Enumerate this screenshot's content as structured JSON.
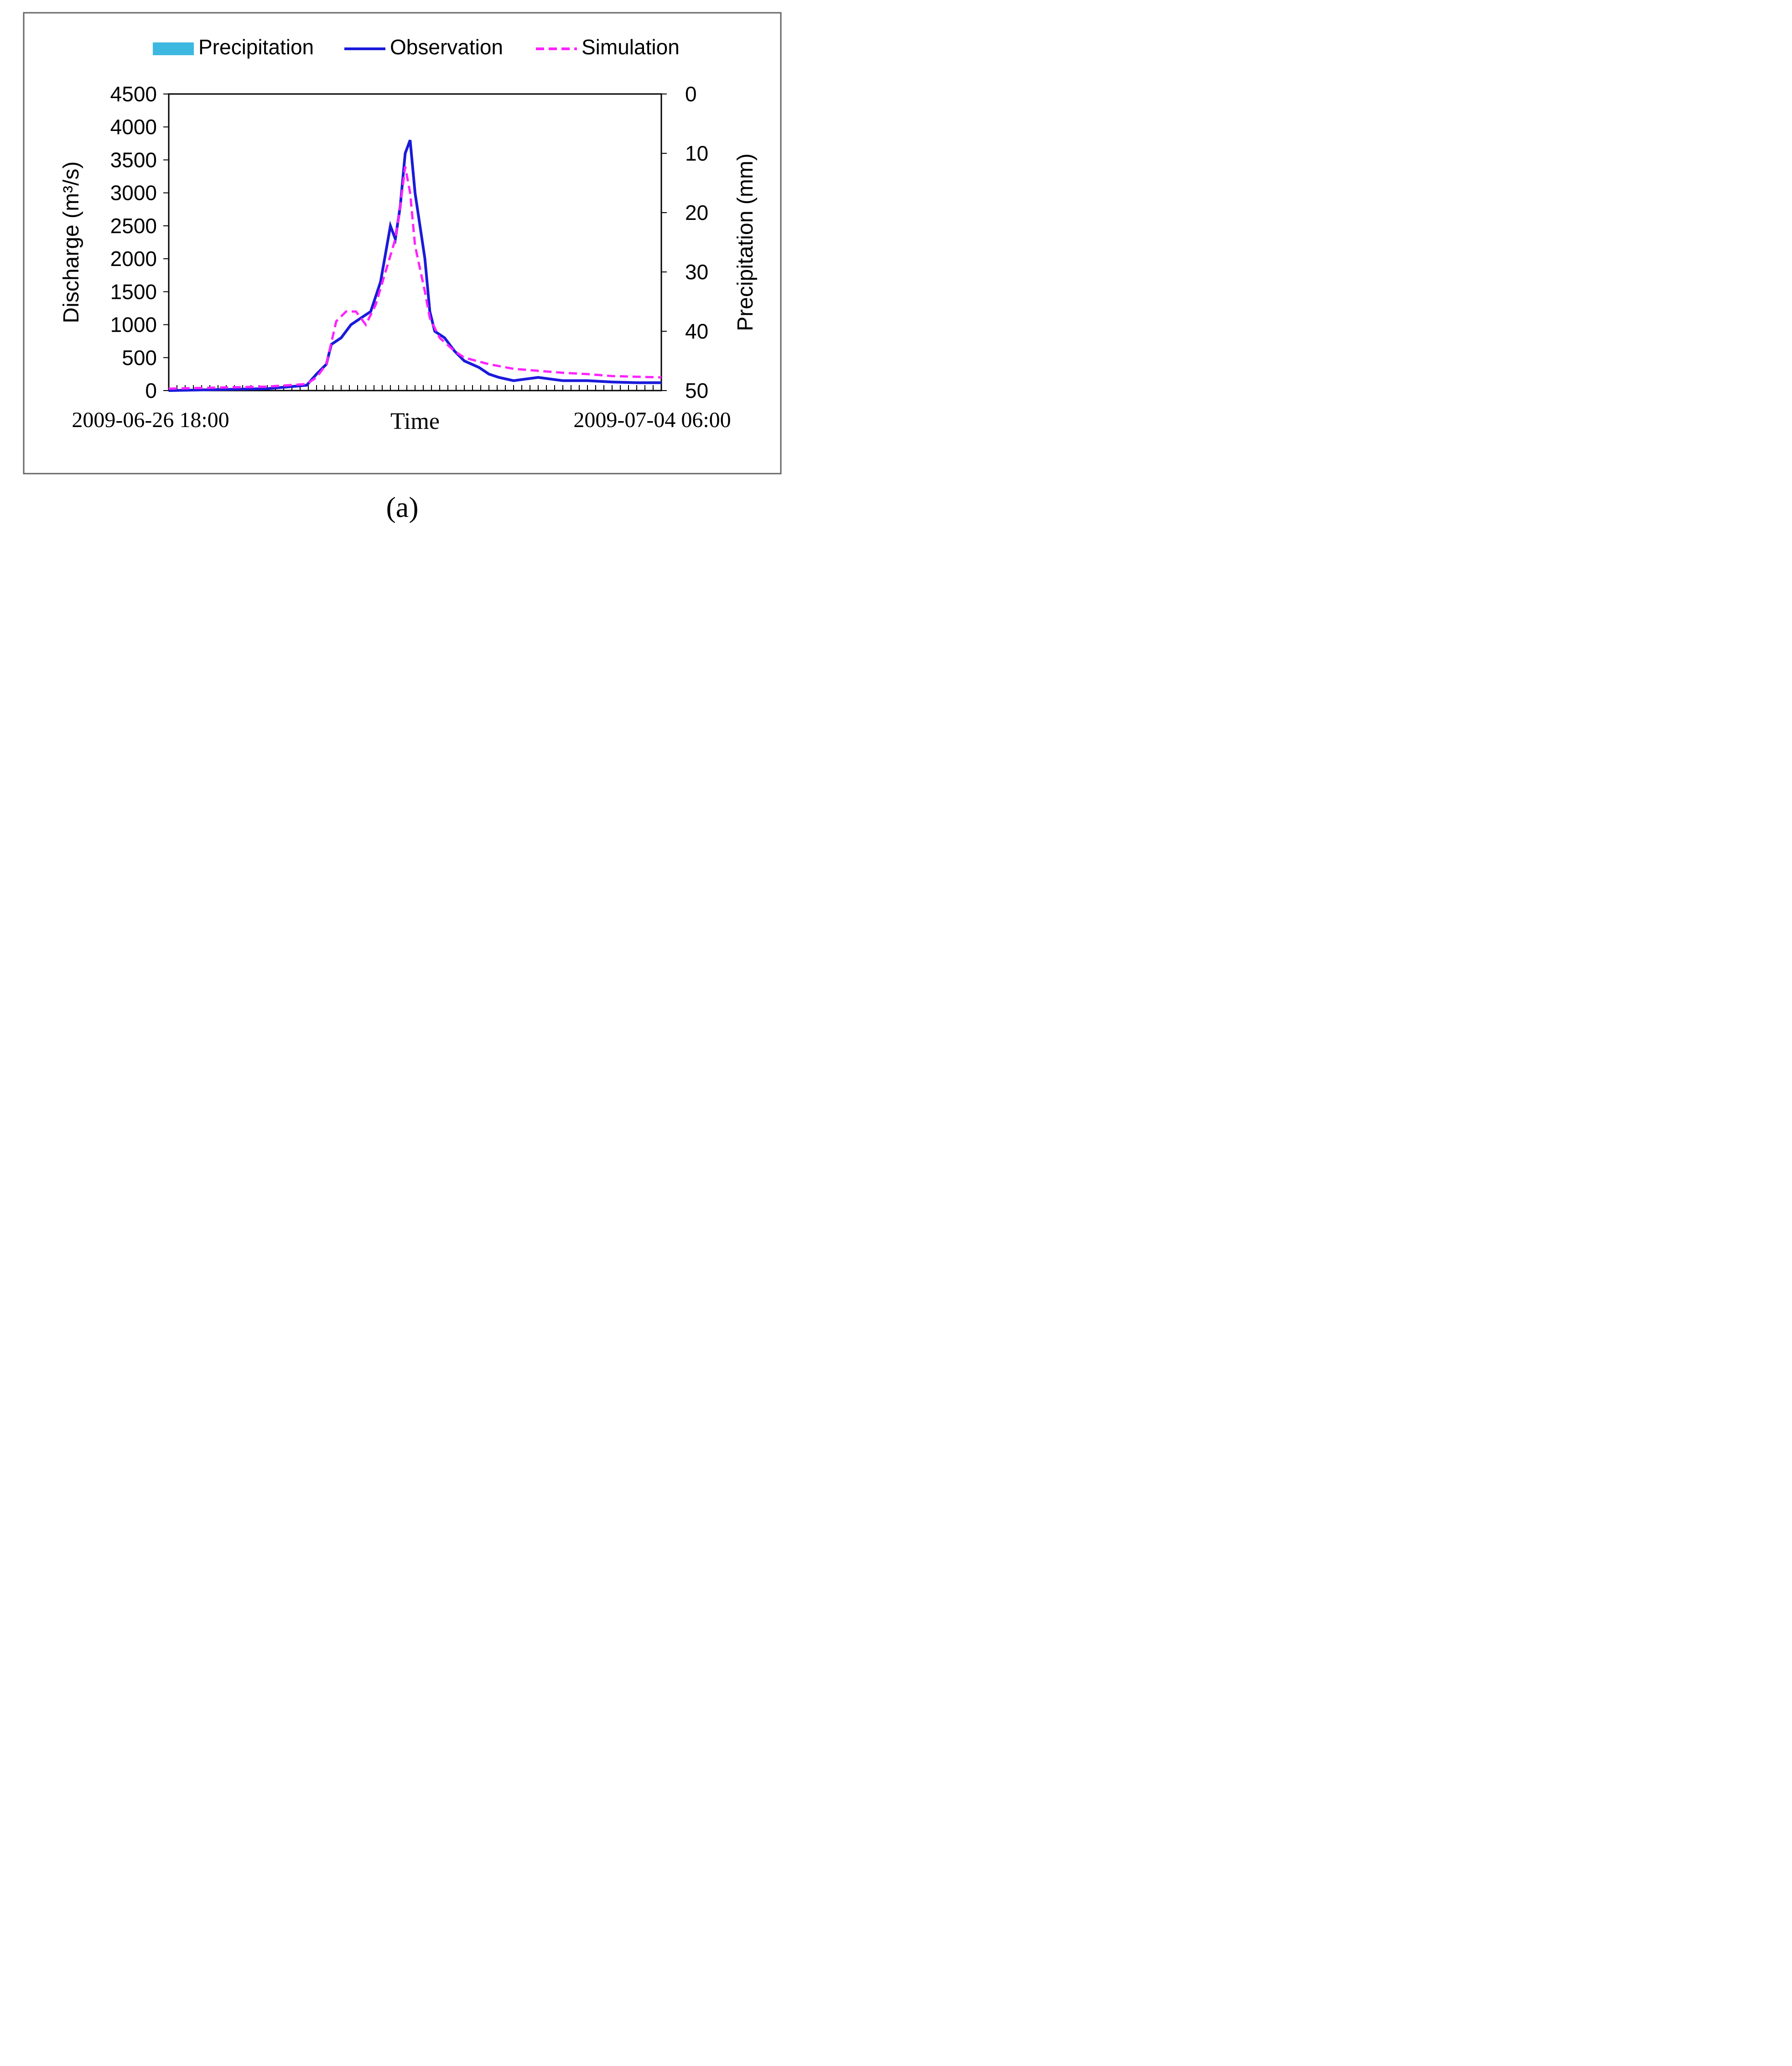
{
  "figure": {
    "time_axis_label": "Time",
    "left_axis_label": "Discharge (m³/s)",
    "right_axis_label": "Precipitation (mm)",
    "legend": {
      "precipitation": "Precipitation",
      "observation": "Observation",
      "simulation": "Simulation"
    },
    "colors": {
      "precipitation": "#3db8e0",
      "observation": "#1a1adb",
      "simulation": "#ff22ff",
      "frame": "#666666",
      "text": "#000000"
    }
  },
  "chart_data": [
    {
      "type": "line",
      "caption": "(a)",
      "start_label": "2009-06-26 18:00",
      "end_label": "2009-07-04 06:00",
      "xlabel": "Time",
      "ylabel": "Discharge (m³/s)",
      "y2label": "Precipitation (mm)",
      "ylim": [
        0,
        4500
      ],
      "yticks": [
        0,
        500,
        1000,
        1500,
        2000,
        2500,
        3000,
        3500,
        4000,
        4500
      ],
      "y2lim": [
        0,
        50
      ],
      "y2ticks": [
        0,
        10,
        20,
        30,
        40,
        50
      ],
      "y2_inverted": true,
      "series": [
        {
          "name": "Observation",
          "points": [
            [
              0,
              0
            ],
            [
              0.2,
              30
            ],
            [
              0.28,
              80
            ],
            [
              0.3,
              250
            ],
            [
              0.32,
              400
            ],
            [
              0.33,
              700
            ],
            [
              0.35,
              800
            ],
            [
              0.37,
              1000
            ],
            [
              0.39,
              1100
            ],
            [
              0.41,
              1200
            ],
            [
              0.43,
              1650
            ],
            [
              0.45,
              2500
            ],
            [
              0.46,
              2300
            ],
            [
              0.47,
              2800
            ],
            [
              0.48,
              3600
            ],
            [
              0.49,
              3800
            ],
            [
              0.5,
              3000
            ],
            [
              0.52,
              2000
            ],
            [
              0.53,
              1200
            ],
            [
              0.54,
              900
            ],
            [
              0.56,
              800
            ],
            [
              0.58,
              600
            ],
            [
              0.6,
              450
            ],
            [
              0.63,
              350
            ],
            [
              0.65,
              250
            ],
            [
              0.67,
              200
            ],
            [
              0.7,
              150
            ],
            [
              0.75,
              200
            ],
            [
              0.8,
              150
            ],
            [
              0.85,
              150
            ],
            [
              0.9,
              130
            ],
            [
              0.95,
              120
            ],
            [
              1,
              120
            ]
          ]
        },
        {
          "name": "Simulation",
          "points": [
            [
              0,
              30
            ],
            [
              0.2,
              60
            ],
            [
              0.28,
              100
            ],
            [
              0.3,
              200
            ],
            [
              0.32,
              400
            ],
            [
              0.34,
              1050
            ],
            [
              0.36,
              1200
            ],
            [
              0.38,
              1200
            ],
            [
              0.4,
              1000
            ],
            [
              0.42,
              1300
            ],
            [
              0.44,
              1800
            ],
            [
              0.46,
              2300
            ],
            [
              0.47,
              2800
            ],
            [
              0.48,
              3400
            ],
            [
              0.49,
              3000
            ],
            [
              0.5,
              2200
            ],
            [
              0.52,
              1500
            ],
            [
              0.53,
              1100
            ],
            [
              0.55,
              800
            ],
            [
              0.58,
              600
            ],
            [
              0.6,
              500
            ],
            [
              0.65,
              400
            ],
            [
              0.7,
              330
            ],
            [
              0.75,
              300
            ],
            [
              0.8,
              270
            ],
            [
              0.85,
              250
            ],
            [
              0.9,
              220
            ],
            [
              0.95,
              210
            ],
            [
              1,
              200
            ]
          ]
        },
        {
          "name": "Precipitation",
          "values": [
            0,
            0,
            0,
            0,
            0,
            0,
            0,
            0,
            0,
            0,
            0,
            0,
            0,
            0,
            0,
            0,
            0,
            0,
            0,
            0,
            0,
            0,
            0,
            0,
            0,
            0,
            0,
            0,
            0,
            0,
            0,
            0,
            0,
            0,
            0,
            0,
            0,
            0,
            0,
            0,
            0,
            0,
            0,
            0,
            0,
            0,
            0,
            0,
            0,
            0,
            0,
            0,
            0,
            0,
            0,
            0,
            0,
            0,
            0,
            0,
            0,
            0,
            0,
            0,
            0,
            0,
            0,
            0,
            0,
            0,
            0,
            0,
            0,
            0,
            0,
            0,
            0,
            0,
            0,
            0,
            0,
            0,
            0,
            0,
            0,
            0,
            0,
            0,
            0,
            0,
            0,
            0,
            0,
            0,
            0,
            0,
            0,
            0,
            0,
            0,
            0,
            0,
            0,
            0,
            0,
            0,
            0,
            0,
            0,
            0,
            0,
            0,
            0,
            0,
            0,
            0,
            0,
            0,
            0,
            0,
            0,
            0,
            0,
            0,
            0,
            0,
            0,
            0,
            0,
            0,
            0,
            0,
            0,
            0,
            0,
            0,
            0,
            0,
            0,
            0,
            0,
            0,
            0,
            0,
            0,
            0,
            0,
            0,
            0,
            0,
            0,
            0,
            0,
            0,
            0,
            0,
            0,
            0,
            0,
            0,
            0,
            0,
            0,
            0,
            0,
            0,
            0,
            0,
            0,
            0,
            0,
            0,
            0,
            0,
            0,
            0,
            0,
            0,
            0,
            0,
            0,
            0,
            0,
            0,
            0,
            0,
            0,
            0,
            0,
            0,
            0,
            0,
            0,
            0,
            0,
            0,
            0,
            0,
            0,
            0
          ]
        }
      ]
    }
  ]
}
